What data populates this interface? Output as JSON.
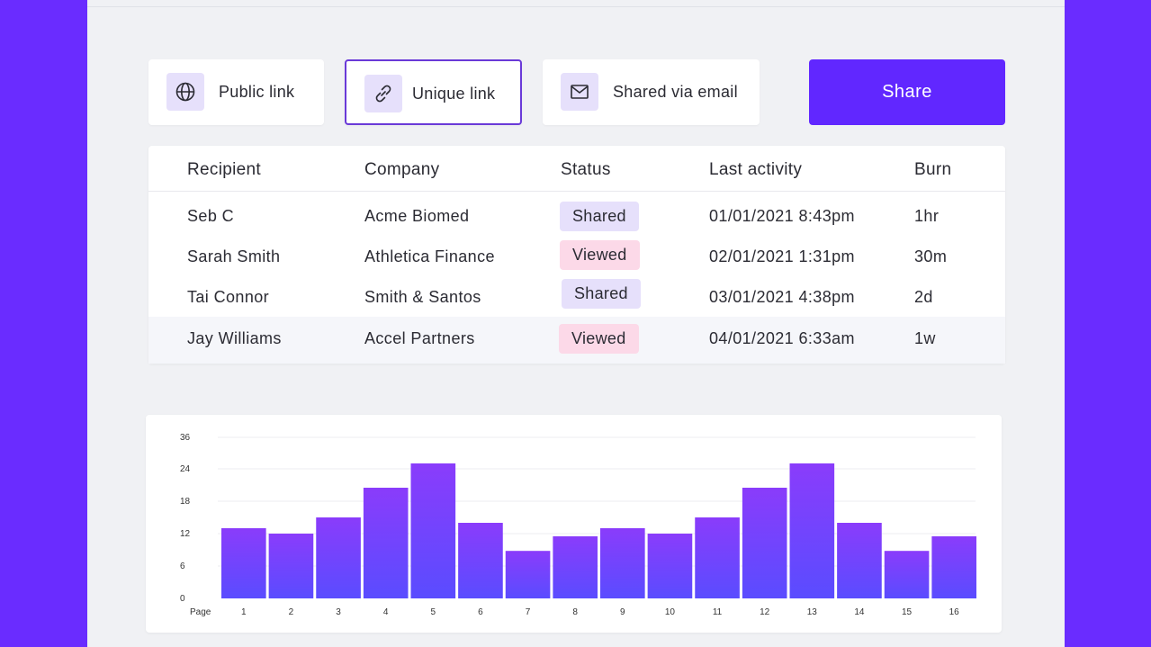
{
  "share_options": [
    {
      "label": "Public link",
      "icon": "globe-icon",
      "selected": false
    },
    {
      "label": "Unique link",
      "icon": "link-icon",
      "selected": true
    },
    {
      "label": "Shared via email",
      "icon": "mail-icon",
      "selected": false
    }
  ],
  "share_button": {
    "label": "Share"
  },
  "table": {
    "headers": [
      "Recipient",
      "Company",
      "Status",
      "Last activity",
      "Burn"
    ],
    "rows": [
      {
        "recipient": "Seb C",
        "company": "Acme Biomed",
        "status": "Shared",
        "last_activity": "01/01/2021 8:43pm",
        "burn": "1hr"
      },
      {
        "recipient": "Sarah Smith",
        "company": "Athletica Finance",
        "status": "Viewed",
        "last_activity": "02/01/2021 1:31pm",
        "burn": "30m"
      },
      {
        "recipient": "Tai Connor",
        "company": "Smith & Santos",
        "status": "Shared",
        "last_activity": "03/01/2021 4:38pm",
        "burn": "2d"
      },
      {
        "recipient": "Jay Williams",
        "company": "Accel Partners",
        "status": "Viewed",
        "last_activity": "04/01/2021 6:33am",
        "burn": "1w"
      }
    ]
  },
  "colors": {
    "accent": "#6127ff",
    "background": "#6a2cff",
    "shared_badge": "#e6e0fb",
    "viewed_badge": "#fcd9e8",
    "bar_top": "#8a3cfb",
    "bar_bottom": "#5a4cff"
  },
  "chart_data": {
    "type": "bar",
    "xlabel": "Page",
    "ylabel": "",
    "categories": [
      "1",
      "2",
      "3",
      "4",
      "5",
      "6",
      "7",
      "8",
      "9",
      "10",
      "11",
      "12",
      "13",
      "14",
      "15",
      "16"
    ],
    "values": [
      13,
      12,
      15,
      20.5,
      25,
      14,
      8.8,
      11.5,
      13,
      12,
      15,
      20.5,
      25,
      14,
      8.8,
      11.5
    ],
    "yticks": [
      "0",
      "6",
      "12",
      "18",
      "24",
      "36"
    ],
    "ylim": [
      0,
      36
    ],
    "grid": true
  }
}
